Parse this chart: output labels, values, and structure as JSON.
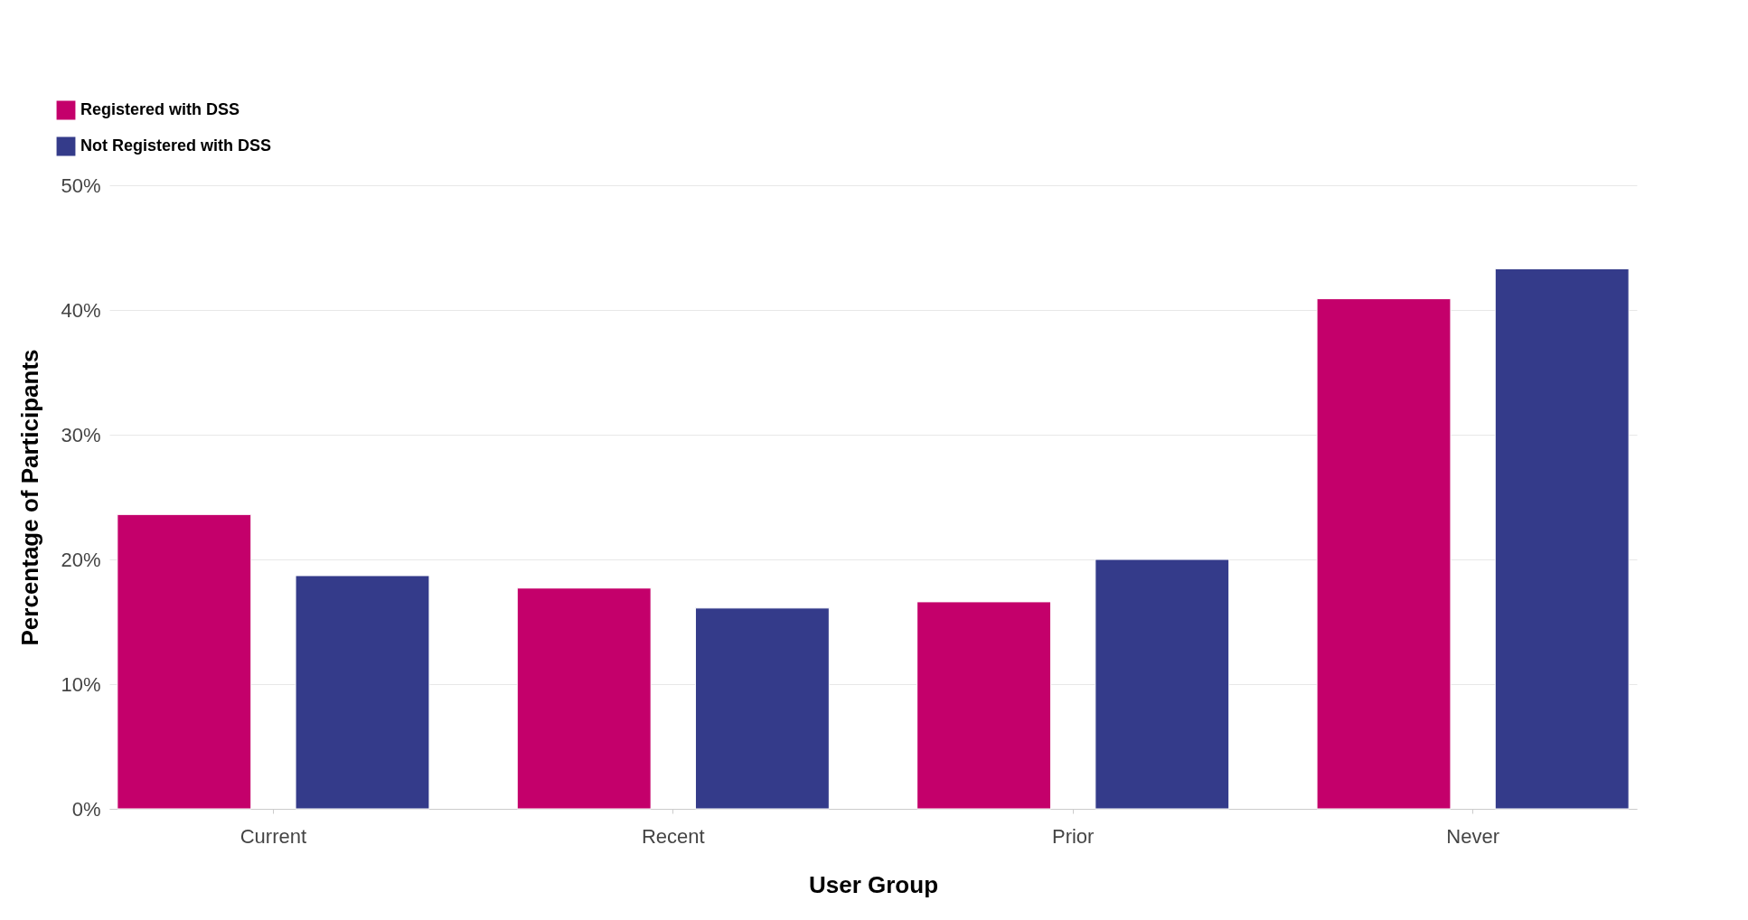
{
  "chart_data": {
    "type": "bar",
    "xlabel": "User Group",
    "ylabel": "Percentage of Participants",
    "categories": [
      "Current",
      "Recent",
      "Prior",
      "Never"
    ],
    "series": [
      {
        "name": "Registered with DSS",
        "color": "#c4006b",
        "values": [
          23.6,
          17.7,
          16.6,
          40.9
        ]
      },
      {
        "name": "Not Registered with DSS",
        "color": "#343b8a",
        "values": [
          18.7,
          16.1,
          20.0,
          43.3
        ]
      }
    ],
    "ylim": [
      0,
      50
    ],
    "yticks": [
      {
        "value": 0,
        "label": "0%"
      },
      {
        "value": 10,
        "label": "10%"
      },
      {
        "value": 20,
        "label": "20%"
      },
      {
        "value": 30,
        "label": "30%"
      },
      {
        "value": 40,
        "label": "40%"
      },
      {
        "value": 50,
        "label": "50%"
      }
    ],
    "grid": "y",
    "legend": "top left"
  }
}
